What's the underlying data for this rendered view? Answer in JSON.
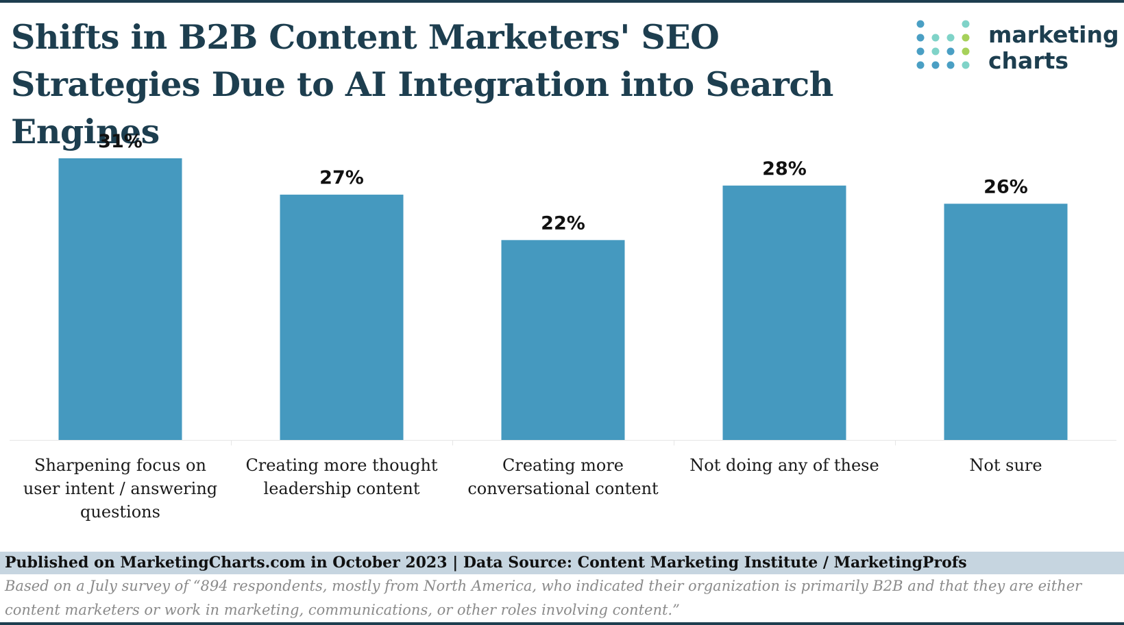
{
  "title": "Shifts in B2B Content Marketers' SEO Strategies Due to AI Integration into Search Engines",
  "logo": {
    "line1": "marketing",
    "line2": "charts"
  },
  "colors": {
    "bar": "#4599bf",
    "title": "#1d3e4f",
    "footer_bg": "#c6d5e0",
    "label": "#111111"
  },
  "chart_data": {
    "type": "bar",
    "categories": [
      "Sharpening focus on user intent / answering questions",
      "Creating more thought leadership content",
      "Creating more conversational content",
      "Not doing any of these",
      "Not sure"
    ],
    "category_lines": [
      [
        "Sharpening focus on",
        "user intent / answering",
        "questions"
      ],
      [
        "Creating more thought",
        "leadership content"
      ],
      [
        "Creating more",
        "conversational content"
      ],
      [
        "Not doing any of these"
      ],
      [
        "Not sure"
      ]
    ],
    "values": [
      31,
      27,
      22,
      28,
      26
    ],
    "value_labels": [
      "31%",
      "27%",
      "22%",
      "28%",
      "26%"
    ],
    "unit": "%",
    "ylim": [
      0,
      31
    ],
    "grid": false,
    "legend": "none"
  },
  "footer": {
    "source": "Published on MarketingCharts.com in October 2023 | Data Source: Content Marketing Institute / MarketingProfs",
    "note": "Based on a July survey of “894 respondents, mostly from North America, who indicated their organization is primarily B2B and that they are either content marketers or work in marketing, communications, or other roles involving content.”"
  }
}
